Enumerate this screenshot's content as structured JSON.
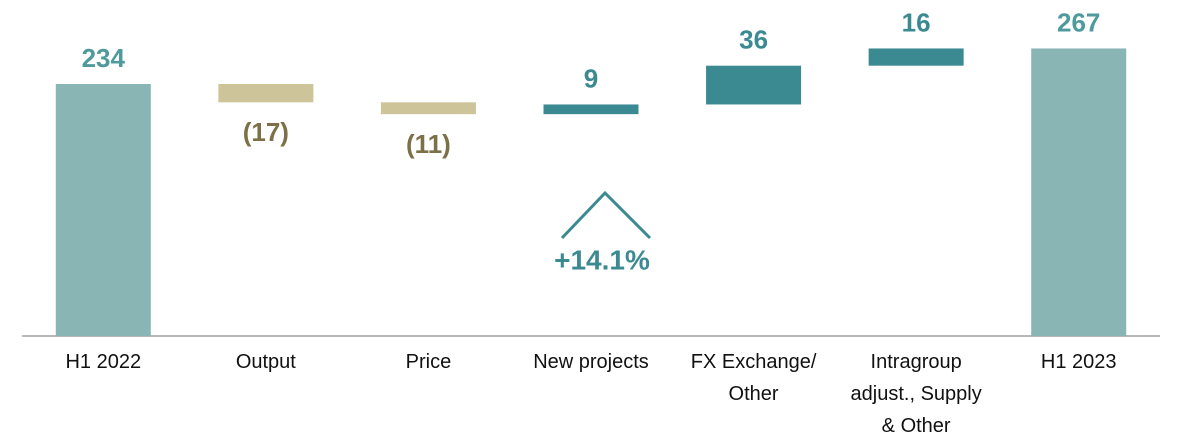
{
  "chart_data": {
    "type": "waterfall",
    "categories": [
      "H1 2022",
      "Output",
      "Price",
      "New projects",
      "FX Exchange/ Other",
      "Intragroup adjust., Supply & Other",
      "H1 2023"
    ],
    "values": [
      234,
      -17,
      -11,
      9,
      36,
      16,
      267
    ],
    "value_labels": [
      "234",
      "(17)",
      "(11)",
      "9",
      "36",
      "16",
      "267"
    ],
    "colors": {
      "total": "#8ab5b5",
      "increase": "#3b8a92",
      "decrease": "#cdc49a"
    },
    "label_colors": {
      "total": "#4f9a9c",
      "increase": "#3b8a92",
      "decrease": "#7d7046"
    },
    "annotation": "+14.1%",
    "ylim": [
      0,
      290
    ]
  }
}
